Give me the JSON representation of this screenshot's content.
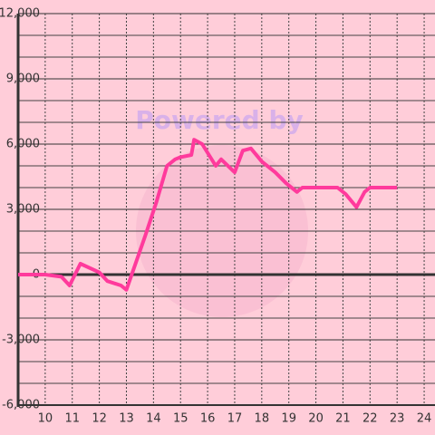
{
  "chart_data": {
    "type": "line",
    "annotation": "Powered by",
    "x": [
      9,
      10,
      10.6,
      10.9,
      11.3,
      12,
      12.3,
      12.8,
      13,
      13.7,
      14.1,
      14.5,
      14.8,
      15,
      15.4,
      15.5,
      15.8,
      16.3,
      16.5,
      17,
      17.3,
      17.6,
      18,
      18.5,
      18.9,
      19.3,
      19.5,
      20.8,
      21.1,
      21.5,
      21.8,
      22,
      23
    ],
    "series": [
      {
        "color": "#ff3a9c",
        "values": [
          0,
          0,
          -100,
          -500,
          500,
          100,
          -300,
          -500,
          -700,
          1800,
          3300,
          5000,
          5300,
          5400,
          5500,
          6200,
          6000,
          5000,
          5300,
          4700,
          5700,
          5800,
          5200,
          4700,
          4200,
          3800,
          4000,
          4000,
          3700,
          3100,
          3800,
          4000,
          4000
        ]
      }
    ],
    "xlim": [
      9,
      24.4
    ],
    "xticks": [
      10,
      11,
      12,
      13,
      14,
      15,
      16,
      17,
      18,
      19,
      20,
      21,
      22,
      23,
      24
    ],
    "ylim": [
      -6000,
      12000
    ],
    "yticks": [
      {
        "value": -6000,
        "label": "-6,000"
      },
      {
        "value": -3000,
        "label": "-3,000"
      },
      0,
      {
        "value": 3000,
        "label": "3,000"
      },
      {
        "value": 6000,
        "label": "6,000"
      },
      {
        "value": 9000,
        "label": "9,000"
      },
      {
        "value": 12000,
        "label": "12,000"
      }
    ],
    "yminorticks": [
      -5000,
      -4000,
      -2000,
      -1000,
      1000,
      2000,
      4000,
      5000,
      7000,
      8000,
      10000,
      11000
    ],
    "grid": true
  }
}
